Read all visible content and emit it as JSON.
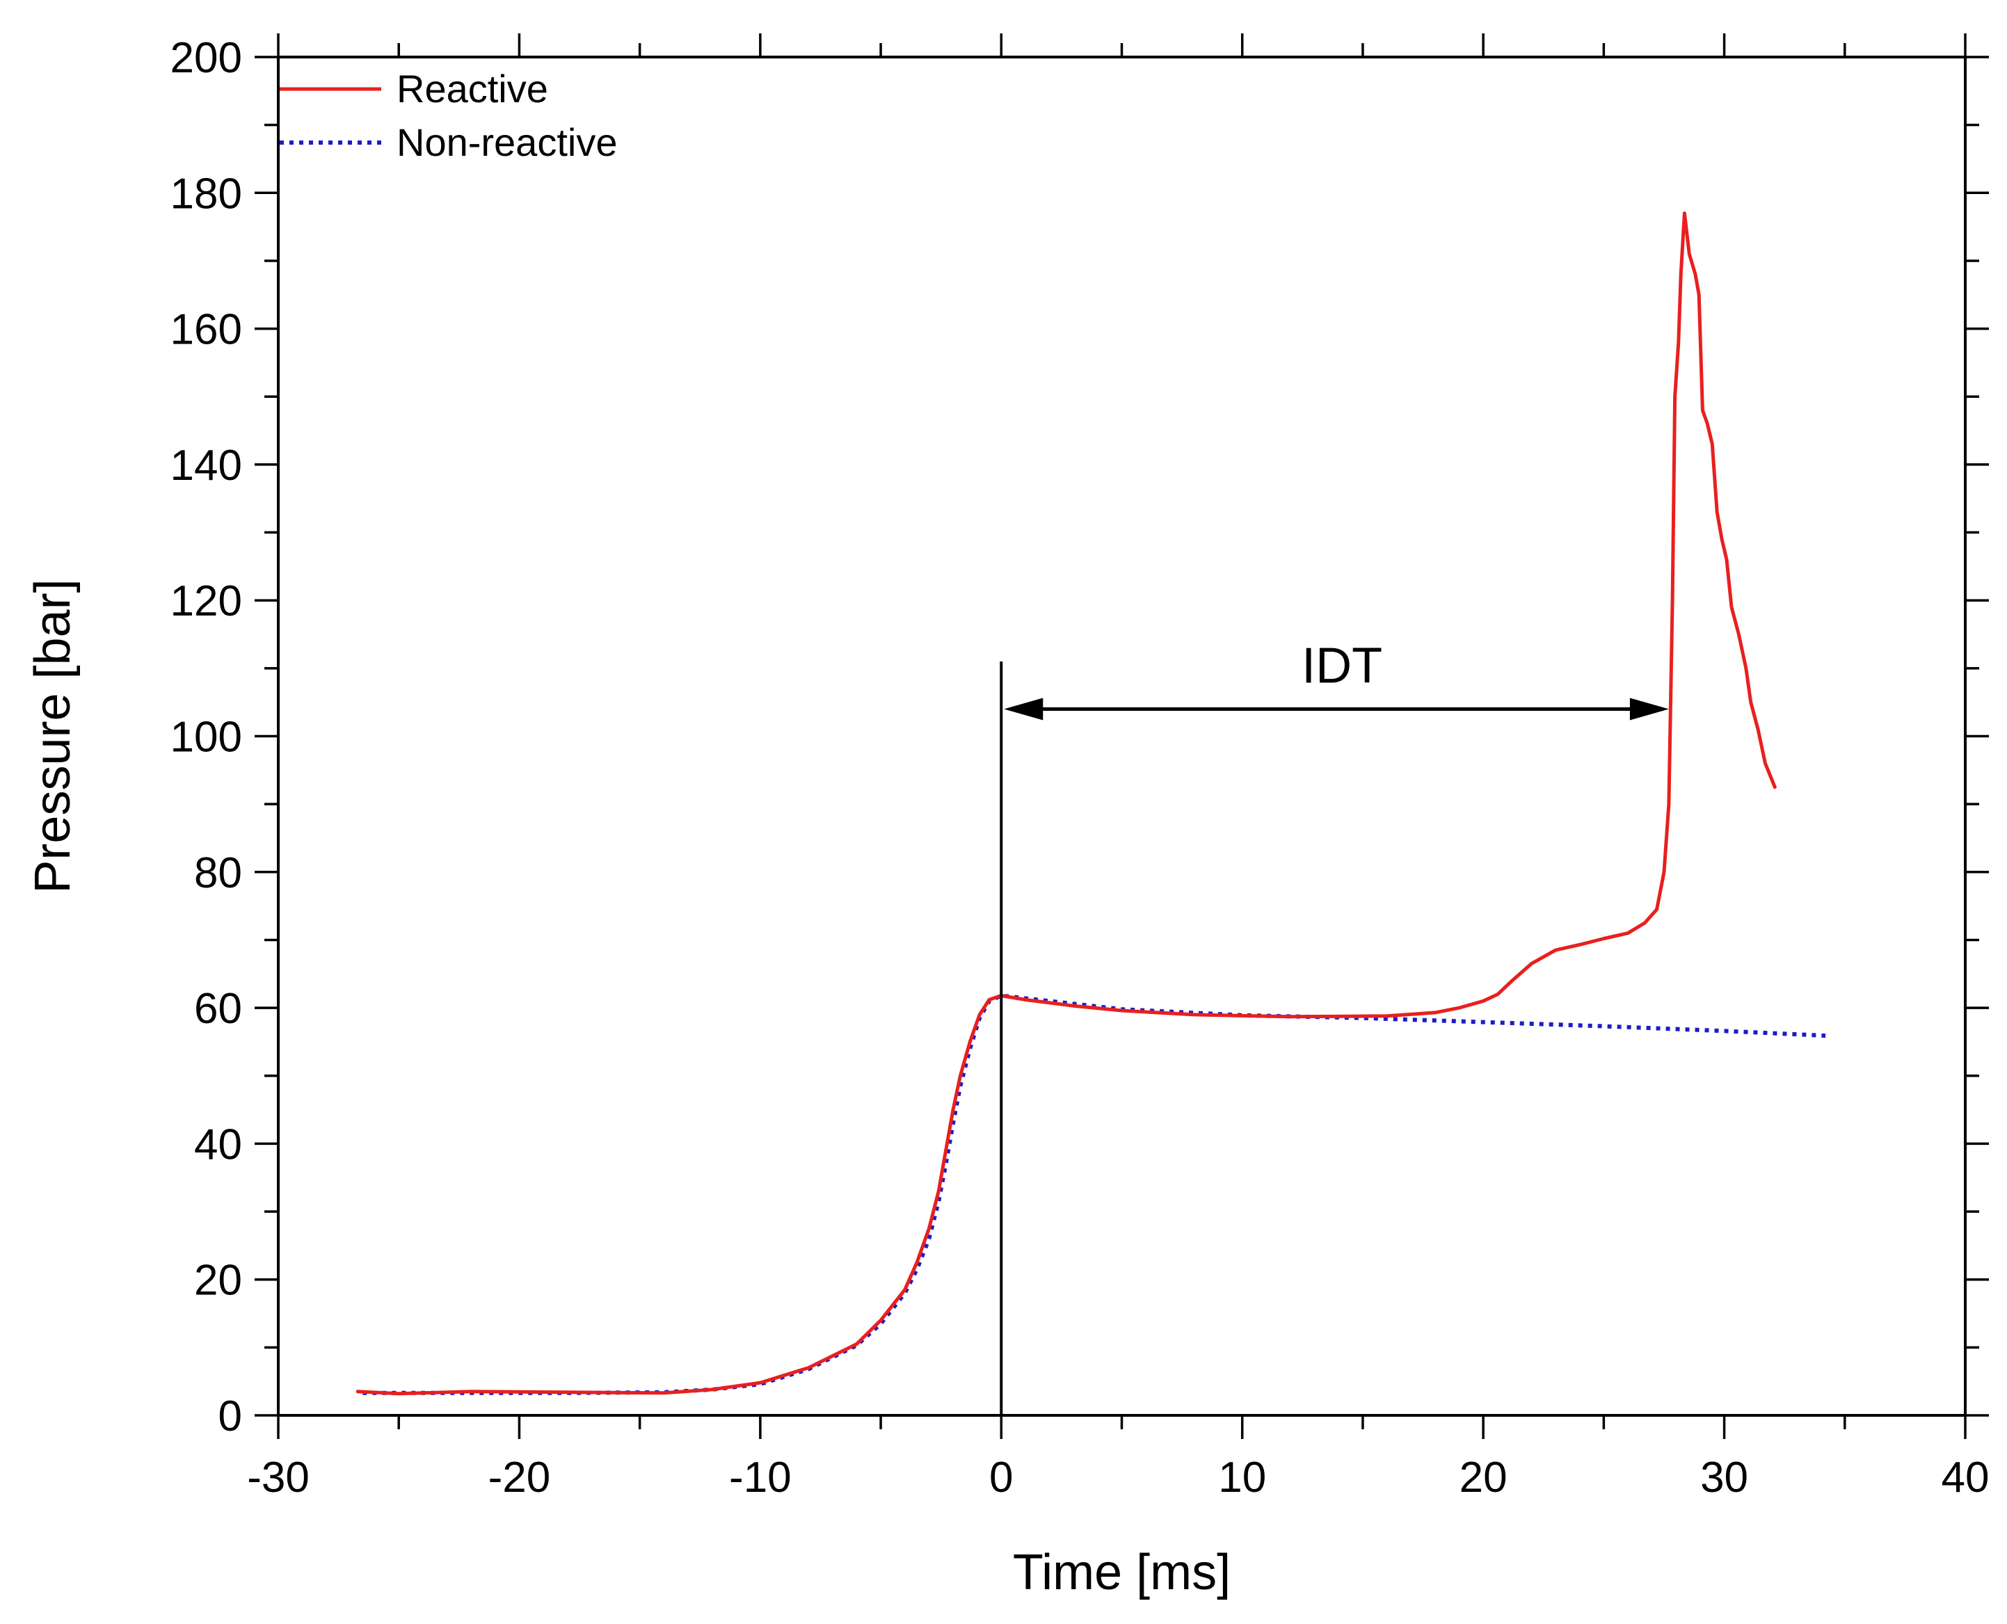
{
  "chart_data": {
    "type": "line",
    "title": "",
    "xlabel": "Time [ms]",
    "ylabel": "Pressure [bar]",
    "xlim": [
      -30,
      40
    ],
    "ylim": [
      0,
      200
    ],
    "xticks": [
      -30,
      -20,
      -10,
      0,
      10,
      20,
      30,
      40
    ],
    "yticks": [
      0,
      20,
      40,
      60,
      80,
      100,
      120,
      140,
      160,
      180,
      200
    ],
    "xtick_labels": [
      "-30",
      "-20",
      "-10",
      "0",
      "10",
      "20",
      "30",
      "40"
    ],
    "ytick_labels": [
      "0",
      "20",
      "40",
      "60",
      "80",
      "100",
      "120",
      "140",
      "160",
      "180",
      "200"
    ],
    "legend_position": "top-left",
    "series": [
      {
        "name": "Reactive",
        "color": "#e8201e",
        "style": "solid",
        "points": [
          [
            -26.7,
            3.5
          ],
          [
            -25,
            3.2
          ],
          [
            -22,
            3.5
          ],
          [
            -18,
            3.4
          ],
          [
            -14,
            3.3
          ],
          [
            -12,
            3.8
          ],
          [
            -10,
            4.8
          ],
          [
            -8,
            7
          ],
          [
            -6,
            10.5
          ],
          [
            -5,
            14
          ],
          [
            -4,
            18.5
          ],
          [
            -3.5,
            22.5
          ],
          [
            -3,
            27.5
          ],
          [
            -2.6,
            33
          ],
          [
            -2.3,
            39
          ],
          [
            -2.0,
            45
          ],
          [
            -1.7,
            50
          ],
          [
            -1.3,
            55
          ],
          [
            -0.9,
            59
          ],
          [
            -0.5,
            61.2
          ],
          [
            0,
            61.8
          ],
          [
            1,
            61.2
          ],
          [
            3,
            60.3
          ],
          [
            5,
            59.6
          ],
          [
            8,
            59.0
          ],
          [
            12,
            58.7
          ],
          [
            16,
            58.8
          ],
          [
            18,
            59.3
          ],
          [
            19,
            60
          ],
          [
            20,
            61
          ],
          [
            20.6,
            62
          ],
          [
            21.2,
            64
          ],
          [
            22,
            66.5
          ],
          [
            23,
            68.5
          ],
          [
            24,
            69.3
          ],
          [
            25,
            70.2
          ],
          [
            26,
            71
          ],
          [
            26.7,
            72.5
          ],
          [
            27.2,
            74.5
          ],
          [
            27.5,
            80
          ],
          [
            27.7,
            90
          ],
          [
            27.85,
            120
          ],
          [
            27.95,
            150
          ],
          [
            28.1,
            158
          ],
          [
            28.2,
            168
          ],
          [
            28.35,
            177
          ],
          [
            28.55,
            171
          ],
          [
            28.8,
            168
          ],
          [
            28.95,
            165
          ],
          [
            29.1,
            148
          ],
          [
            29.3,
            146
          ],
          [
            29.5,
            143
          ],
          [
            29.7,
            133
          ],
          [
            29.9,
            129
          ],
          [
            30.1,
            126
          ],
          [
            30.3,
            119
          ],
          [
            30.6,
            115
          ],
          [
            30.9,
            110
          ],
          [
            31.1,
            105
          ],
          [
            31.4,
            101
          ],
          [
            31.7,
            96
          ],
          [
            32.1,
            92.5
          ]
        ]
      },
      {
        "name": "Non-reactive",
        "color": "#1c1cc8",
        "style": "dotted",
        "points": [
          [
            -26.5,
            3.3
          ],
          [
            -22,
            3.3
          ],
          [
            -18,
            3.3
          ],
          [
            -14,
            3.4
          ],
          [
            -12,
            3.8
          ],
          [
            -10,
            4.6
          ],
          [
            -8,
            6.8
          ],
          [
            -6,
            10.3
          ],
          [
            -5,
            13.5
          ],
          [
            -4,
            18
          ],
          [
            -3.5,
            21.5
          ],
          [
            -3,
            26
          ],
          [
            -2.6,
            31.5
          ],
          [
            -2.3,
            37
          ],
          [
            -2.0,
            43
          ],
          [
            -1.7,
            48.5
          ],
          [
            -1.3,
            54
          ],
          [
            -0.9,
            58.5
          ],
          [
            -0.5,
            61
          ],
          [
            0,
            61.8
          ],
          [
            2,
            61.0
          ],
          [
            5,
            59.8
          ],
          [
            10,
            58.9
          ],
          [
            15,
            58.5
          ],
          [
            20,
            57.9
          ],
          [
            25,
            57.3
          ],
          [
            30,
            56.6
          ],
          [
            34.2,
            55.9
          ]
        ]
      }
    ],
    "annotations": [
      {
        "type": "vertical-line",
        "x": 0,
        "y_from": 0,
        "y_to": 111
      },
      {
        "type": "double-arrow",
        "label": "IDT",
        "x_from": 0,
        "x_to": 27.7,
        "y": 104
      }
    ]
  }
}
